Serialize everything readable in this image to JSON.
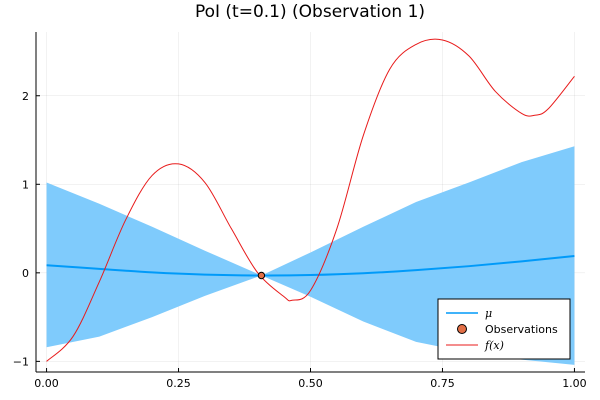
{
  "chart_data": {
    "type": "line",
    "title": "PoI (t=0.1) (Observation 1)",
    "xlabel": "",
    "ylabel": "",
    "xlim": [
      -0.02,
      1.02
    ],
    "ylim": [
      -1.12,
      2.72
    ],
    "xticks": [
      0.0,
      0.25,
      0.5,
      0.75,
      1.0
    ],
    "xtick_labels": [
      "0.00",
      "0.25",
      "0.50",
      "0.75",
      "1.00"
    ],
    "yticks": [
      -1,
      0,
      1,
      2
    ],
    "ytick_labels": [
      "−1",
      "0",
      "1",
      "2"
    ],
    "grid": true,
    "legend_position": "bottom-right",
    "colors": {
      "mu": "#009af9",
      "band": "#7fcbfc",
      "observations": "#e26f46",
      "fx": "#e81b1b"
    },
    "series": [
      {
        "name": "μ",
        "kind": "line",
        "x": [
          0.0,
          0.1,
          0.2,
          0.3,
          0.407,
          0.5,
          0.6,
          0.7,
          0.8,
          0.9,
          1.0
        ],
        "values": [
          0.085,
          0.045,
          0.005,
          -0.02,
          -0.03,
          -0.025,
          -0.005,
          0.03,
          0.075,
          0.13,
          0.19
        ]
      },
      {
        "name": "",
        "kind": "band",
        "x": [
          0.0,
          0.1,
          0.2,
          0.3,
          0.407,
          0.5,
          0.6,
          0.7,
          0.8,
          0.9,
          1.0
        ],
        "upper": [
          1.02,
          0.78,
          0.52,
          0.25,
          -0.03,
          0.23,
          0.52,
          0.8,
          1.02,
          1.25,
          1.43
        ],
        "lower": [
          -0.84,
          -0.72,
          -0.5,
          -0.26,
          -0.03,
          -0.27,
          -0.55,
          -0.78,
          -0.9,
          -0.98,
          -1.04
        ]
      },
      {
        "name": "Observations",
        "kind": "scatter",
        "x": [
          0.407
        ],
        "values": [
          -0.03
        ]
      },
      {
        "name": "f(x)",
        "kind": "line",
        "x": [
          0.0,
          0.05,
          0.1,
          0.15,
          0.2,
          0.25,
          0.3,
          0.35,
          0.4,
          0.45,
          0.465,
          0.5,
          0.55,
          0.6,
          0.65,
          0.7,
          0.75,
          0.8,
          0.85,
          0.9,
          0.925,
          0.95,
          1.0
        ],
        "values": [
          -1.0,
          -0.72,
          -0.1,
          0.6,
          1.1,
          1.23,
          1.02,
          0.5,
          0.0,
          -0.27,
          -0.31,
          -0.2,
          0.5,
          1.55,
          2.3,
          2.58,
          2.63,
          2.45,
          2.05,
          1.8,
          1.78,
          1.85,
          2.22
        ]
      }
    ]
  },
  "legend": {
    "items": [
      {
        "label": "μ"
      },
      {
        "label": "Observations"
      },
      {
        "label": "f(x)"
      }
    ]
  }
}
